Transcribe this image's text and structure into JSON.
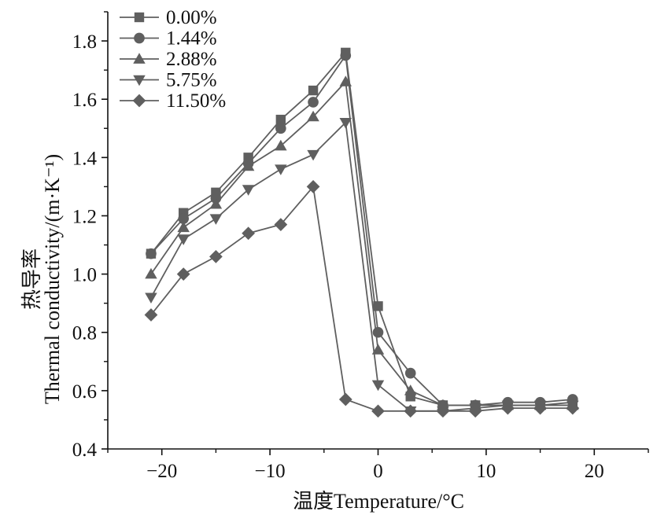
{
  "chart_data": {
    "type": "line",
    "xlabel": "温度Temperature/°C",
    "ylabel_cn": "热导率",
    "ylabel_en": "Thermal conductivity/(m·K⁻¹)",
    "xlim": [
      -25,
      25
    ],
    "ylim": [
      0.4,
      1.9
    ],
    "xticks": [
      -20,
      -10,
      0,
      10,
      20
    ],
    "xtick_labels": [
      "−20",
      "−10",
      "0",
      "10",
      "20"
    ],
    "yticks": [
      0.4,
      0.6,
      0.8,
      1.0,
      1.2,
      1.4,
      1.6,
      1.8
    ],
    "ytick_labels": [
      "0.4",
      "0.6",
      "0.8",
      "1.0",
      "1.2",
      "1.4",
      "1.6",
      "1.8"
    ],
    "grid": false,
    "legend_position": "top-left",
    "series": [
      {
        "name": "0.00%",
        "marker": "square",
        "color": "#5f5f5f",
        "x": [
          -21,
          -18,
          -15,
          -12,
          -9,
          -6,
          -3,
          0,
          3,
          6,
          9,
          12,
          15,
          18
        ],
        "y": [
          1.07,
          1.21,
          1.28,
          1.4,
          1.53,
          1.63,
          1.76,
          0.89,
          0.58,
          0.55,
          0.55,
          0.55,
          0.55,
          0.56
        ]
      },
      {
        "name": "1.44%",
        "marker": "circle",
        "color": "#5f5f5f",
        "x": [
          -21,
          -18,
          -15,
          -12,
          -9,
          -6,
          -3,
          0,
          3,
          6,
          9,
          12,
          15,
          18
        ],
        "y": [
          1.07,
          1.19,
          1.26,
          1.38,
          1.5,
          1.59,
          1.75,
          0.8,
          0.66,
          0.55,
          0.55,
          0.56,
          0.56,
          0.57
        ]
      },
      {
        "name": "2.88%",
        "marker": "triangle-up",
        "color": "#5f5f5f",
        "x": [
          -21,
          -18,
          -15,
          -12,
          -9,
          -6,
          -3,
          0,
          3,
          6,
          9,
          12,
          15,
          18
        ],
        "y": [
          1.0,
          1.16,
          1.24,
          1.37,
          1.44,
          1.54,
          1.66,
          0.74,
          0.6,
          0.55,
          0.55,
          0.55,
          0.55,
          0.55
        ]
      },
      {
        "name": "5.75%",
        "marker": "triangle-down",
        "color": "#5f5f5f",
        "x": [
          -21,
          -18,
          -15,
          -12,
          -9,
          -6,
          -3,
          0,
          3,
          6,
          9,
          12,
          15,
          18
        ],
        "y": [
          0.92,
          1.12,
          1.19,
          1.29,
          1.36,
          1.41,
          1.52,
          0.62,
          0.53,
          0.53,
          0.54,
          0.55,
          0.55,
          0.55
        ]
      },
      {
        "name": "11.50%",
        "marker": "diamond",
        "color": "#5f5f5f",
        "x": [
          -21,
          -18,
          -15,
          -12,
          -9,
          -6,
          -3,
          0,
          3,
          6,
          9,
          12,
          15,
          18
        ],
        "y": [
          0.86,
          1.0,
          1.06,
          1.14,
          1.17,
          1.3,
          0.57,
          0.53,
          0.53,
          0.53,
          0.53,
          0.54,
          0.54,
          0.54
        ]
      }
    ]
  }
}
